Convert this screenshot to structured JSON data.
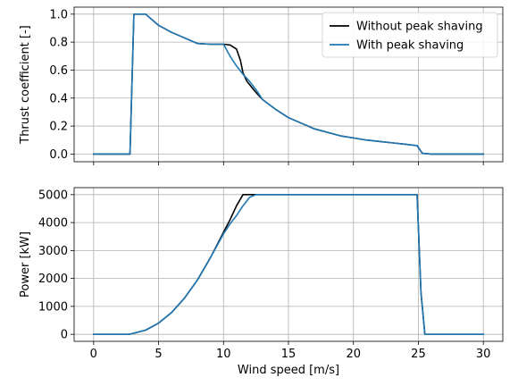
{
  "chart_data": [
    {
      "type": "line",
      "title": "",
      "xlabel": "",
      "ylabel": "Thrust coefficient [-]",
      "xlim": [
        -1.5,
        31.5
      ],
      "ylim": [
        -0.055,
        1.05
      ],
      "grid": true,
      "legend": "top-right",
      "x_ticks": [
        0,
        5,
        10,
        15,
        20,
        25,
        30
      ],
      "x_tick_labels_visible": false,
      "y_ticks": [
        0.0,
        0.2,
        0.4,
        0.6,
        0.8,
        1.0
      ],
      "y_tick_labels": [
        "0.0",
        "0.2",
        "0.4",
        "0.6",
        "0.8",
        "1.0"
      ],
      "series": [
        {
          "name": "Without peak shaving",
          "color": "#000000",
          "x": [
            0,
            2.8,
            3.1,
            4.0,
            5.0,
            6.0,
            7.0,
            8.0,
            9.0,
            10.0,
            10.5,
            11.0,
            11.3,
            11.5,
            11.8,
            12.5,
            13.0,
            14.0,
            15.0,
            16.0,
            17.0,
            18.0,
            19.0,
            20.0,
            21.0,
            22.0,
            23.0,
            24.0,
            24.9,
            25.3,
            26.0,
            30.0
          ],
          "y": [
            0.0,
            0.0,
            1.0,
            1.0,
            0.92,
            0.87,
            0.83,
            0.79,
            0.785,
            0.785,
            0.78,
            0.75,
            0.67,
            0.58,
            0.52,
            0.44,
            0.39,
            0.32,
            0.26,
            0.22,
            0.18,
            0.155,
            0.13,
            0.115,
            0.1,
            0.09,
            0.08,
            0.07,
            0.06,
            0.005,
            0.0,
            0.0
          ]
        },
        {
          "name": "With peak shaving",
          "color": "#1f77b4",
          "x": [
            0,
            2.8,
            3.1,
            4.0,
            5.0,
            6.0,
            7.0,
            8.0,
            9.0,
            10.0,
            10.5,
            11.0,
            11.5,
            12.0,
            12.5,
            13.0,
            14.0,
            15.0,
            16.0,
            17.0,
            18.0,
            19.0,
            20.0,
            21.0,
            22.0,
            23.0,
            24.0,
            24.9,
            25.3,
            26.0,
            30.0
          ],
          "y": [
            0.0,
            0.0,
            1.0,
            1.0,
            0.92,
            0.87,
            0.83,
            0.79,
            0.785,
            0.785,
            0.7,
            0.63,
            0.57,
            0.52,
            0.46,
            0.39,
            0.32,
            0.26,
            0.22,
            0.18,
            0.155,
            0.13,
            0.115,
            0.1,
            0.09,
            0.08,
            0.07,
            0.06,
            0.005,
            0.0,
            0.0
          ]
        }
      ]
    },
    {
      "type": "line",
      "title": "",
      "xlabel": "Wind speed [m/s]",
      "ylabel": "Power [kW]",
      "xlim": [
        -1.5,
        31.5
      ],
      "ylim": [
        -250,
        5250
      ],
      "grid": true,
      "x_ticks": [
        0,
        5,
        10,
        15,
        20,
        25,
        30
      ],
      "x_tick_labels": [
        "0",
        "5",
        "10",
        "15",
        "20",
        "25",
        "30"
      ],
      "y_ticks": [
        0,
        1000,
        2000,
        3000,
        4000,
        5000
      ],
      "y_tick_labels": [
        "0",
        "1000",
        "2000",
        "3000",
        "4000",
        "5000"
      ],
      "series": [
        {
          "name": "Without peak shaving",
          "color": "#000000",
          "x": [
            0,
            2.7,
            3.0,
            4.0,
            5.0,
            6.0,
            7.0,
            8.0,
            9.0,
            10.0,
            10.5,
            11.0,
            11.5,
            12.0,
            12.5,
            13.0,
            20.0,
            24.9,
            25.2,
            25.5,
            30.0
          ],
          "y": [
            0,
            0,
            30,
            150,
            400,
            780,
            1300,
            1950,
            2750,
            3650,
            4100,
            4600,
            5000,
            5000,
            5000,
            5000,
            5000,
            5000,
            1500,
            0,
            0
          ]
        },
        {
          "name": "With peak shaving",
          "color": "#1f77b4",
          "x": [
            0,
            2.7,
            3.0,
            4.0,
            5.0,
            6.0,
            7.0,
            8.0,
            9.0,
            10.0,
            10.5,
            11.0,
            11.5,
            12.0,
            12.5,
            13.0,
            20.0,
            24.9,
            25.2,
            25.5,
            30.0
          ],
          "y": [
            0,
            0,
            30,
            150,
            400,
            780,
            1300,
            1950,
            2750,
            3600,
            3950,
            4250,
            4600,
            4900,
            5000,
            5000,
            5000,
            5000,
            1500,
            0,
            0
          ]
        }
      ]
    }
  ]
}
